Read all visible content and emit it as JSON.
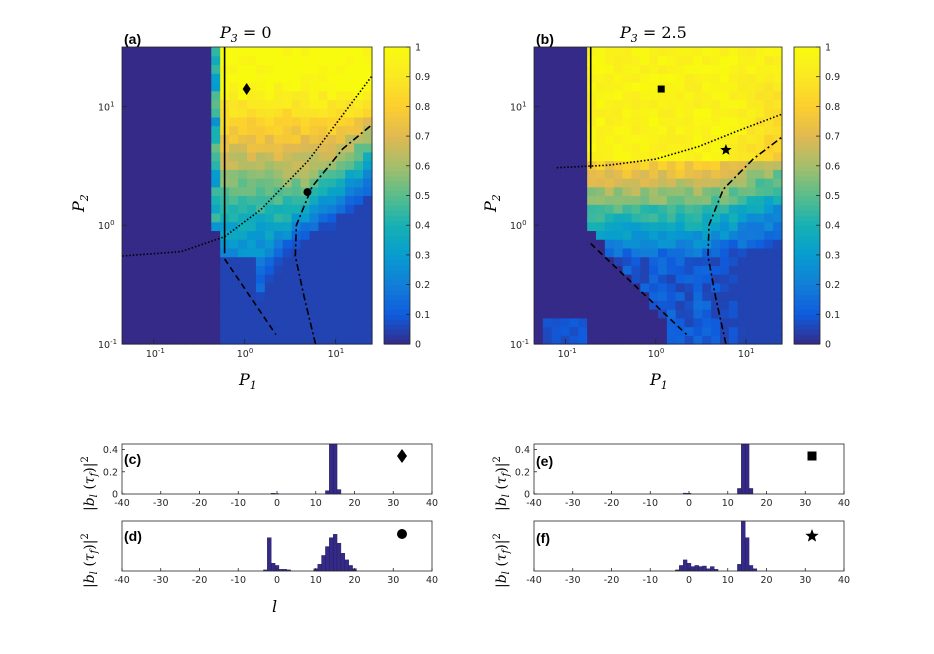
{
  "chart_data": [
    {
      "panel": "(a)",
      "type": "heatmap",
      "title_var": "P",
      "title_sub": "3",
      "title_rest": " = 0",
      "xlabel_var": "P",
      "xlabel_sub": "1",
      "ylabel_var": "P",
      "ylabel_sub": "2",
      "xlog": [
        -1.35,
        1.4
      ],
      "ylog": [
        -1.0,
        1.5
      ],
      "x_ticks": [
        {
          "base": "10",
          "exp": "-1",
          "v": 0.1
        },
        {
          "base": "10",
          "exp": "0",
          "v": 1
        },
        {
          "base": "10",
          "exp": "1",
          "v": 10
        }
      ],
      "y_ticks": [
        {
          "base": "10",
          "exp": "-1",
          "v": 0.1
        },
        {
          "base": "10",
          "exp": "0",
          "v": 1
        },
        {
          "base": "10",
          "exp": "1",
          "v": 10
        }
      ],
      "colorbar": {
        "min": 0,
        "max": 1,
        "ticks": [
          "0",
          "0.1",
          "0.2",
          "0.3",
          "0.4",
          "0.5",
          "0.6",
          "0.7",
          "0.8",
          "0.9",
          "1"
        ]
      },
      "threshold_P1": 0.6,
      "solid_line": {
        "P1": 0.6,
        "P2_range": [
          0.58,
          31.6
        ]
      },
      "dotted_curve": [
        [
          0.045,
          0.55
        ],
        [
          0.2,
          0.6
        ],
        [
          0.6,
          0.8
        ],
        [
          1.5,
          1.35
        ],
        [
          5,
          3.5
        ],
        [
          12,
          8.5
        ],
        [
          25,
          18
        ]
      ],
      "dashdot_curve": [
        [
          6,
          0.1
        ],
        [
          4.5,
          0.25
        ],
        [
          3.6,
          0.55
        ],
        [
          3.7,
          1.0
        ],
        [
          5.5,
          2.1
        ],
        [
          12,
          4.4
        ],
        [
          25,
          7
        ]
      ],
      "dashed_line": [
        [
          0.6,
          0.52
        ],
        [
          2.2,
          0.12
        ]
      ],
      "markers": [
        {
          "symbol": "diamond",
          "P1": 1.05,
          "P2": 14
        },
        {
          "symbol": "circle",
          "P1": 4.9,
          "P2": 1.9
        }
      ]
    },
    {
      "panel": "(b)",
      "type": "heatmap",
      "title_var": "P",
      "title_sub": "3",
      "title_rest": " = 2.5",
      "xlabel_var": "P",
      "xlabel_sub": "1",
      "ylabel_var": "P",
      "ylabel_sub": "2",
      "xlog": [
        -1.35,
        1.4
      ],
      "ylog": [
        -1.0,
        1.5
      ],
      "x_ticks": [
        {
          "base": "10",
          "exp": "-1",
          "v": 0.1
        },
        {
          "base": "10",
          "exp": "0",
          "v": 1
        },
        {
          "base": "10",
          "exp": "1",
          "v": 10
        }
      ],
      "y_ticks": [
        {
          "base": "10",
          "exp": "-1",
          "v": 0.1
        },
        {
          "base": "10",
          "exp": "0",
          "v": 1
        },
        {
          "base": "10",
          "exp": "1",
          "v": 10
        }
      ],
      "colorbar": {
        "min": 0,
        "max": 1,
        "ticks": [
          "0",
          "0.1",
          "0.2",
          "0.3",
          "0.4",
          "0.5",
          "0.6",
          "0.7",
          "0.8",
          "0.9",
          "1"
        ]
      },
      "threshold_P1": 0.19,
      "solid_line": {
        "P1": 0.19,
        "P2_range": [
          3.0,
          31.6
        ]
      },
      "dotted_curve": [
        [
          0.08,
          3.05
        ],
        [
          0.3,
          3.2
        ],
        [
          1,
          3.6
        ],
        [
          3,
          4.6
        ],
        [
          8,
          6.2
        ],
        [
          25,
          8.6
        ]
      ],
      "dashdot_curve": [
        [
          6,
          0.1
        ],
        [
          4.6,
          0.25
        ],
        [
          3.8,
          0.55
        ],
        [
          3.9,
          1.0
        ],
        [
          5.6,
          2.0
        ],
        [
          12,
          3.6
        ],
        [
          25,
          5.5
        ]
      ],
      "dashed_line": [
        [
          0.19,
          0.7
        ],
        [
          2.2,
          0.12
        ]
      ],
      "markers": [
        {
          "symbol": "square",
          "P1": 1.15,
          "P2": 14
        },
        {
          "symbol": "star",
          "P1": 6.0,
          "P2": 4.3
        }
      ]
    },
    {
      "panel": "(c)",
      "type": "bar",
      "ylabel": "|b_l(τ_f)|^2",
      "xlabel": "",
      "xlim": [
        -40,
        40
      ],
      "ylim": [
        0,
        0.45
      ],
      "x_ticks": [
        "-40",
        "-30",
        "-20",
        "-10",
        "0",
        "10",
        "20",
        "30",
        "40"
      ],
      "y_ticks": [
        "0",
        "0.2",
        "0.4"
      ],
      "bars": {
        "x": [
          -1,
          0,
          13,
          14,
          15,
          16
        ],
        "y": [
          0.006,
          0.004,
          0.03,
          0.45,
          0.45,
          0.04
        ]
      },
      "marker": "diamond"
    },
    {
      "panel": "(d)",
      "type": "bar",
      "ylabel": "|b_l(τ_f)|^2",
      "xlabel": "l",
      "xlim": [
        -40,
        40
      ],
      "ylim": [
        0,
        0.45
      ],
      "x_ticks": [
        "-40",
        "-30",
        "-20",
        "-10",
        "0",
        "10",
        "20",
        "30",
        "40"
      ],
      "y_ticks": [],
      "bars": {
        "x": [
          -3,
          -2,
          -1,
          0,
          1,
          2,
          3,
          10,
          11,
          12,
          13,
          14,
          15,
          16,
          17,
          18,
          19,
          20
        ],
        "y": [
          0.01,
          0.3,
          0.07,
          0.05,
          0.015,
          0.015,
          0.01,
          0.02,
          0.06,
          0.14,
          0.22,
          0.3,
          0.33,
          0.25,
          0.16,
          0.1,
          0.05,
          0.02
        ]
      },
      "marker": "circle"
    },
    {
      "panel": "(e)",
      "type": "bar",
      "ylabel": "|b_l(τ_f)|^2",
      "xlabel": "",
      "xlim": [
        -40,
        40
      ],
      "ylim": [
        0,
        0.45
      ],
      "x_ticks": [
        "-40",
        "-30",
        "-20",
        "-10",
        "0",
        "10",
        "20",
        "30",
        "40"
      ],
      "y_ticks": [
        "0",
        "0.2",
        "0.4"
      ],
      "bars": {
        "x": [
          -1,
          0,
          13,
          14,
          15,
          16
        ],
        "y": [
          0.008,
          0.006,
          0.05,
          0.45,
          0.45,
          0.05
        ]
      },
      "marker": "square"
    },
    {
      "panel": "(f)",
      "type": "bar",
      "ylabel": "|b_l(τ_f)|^2",
      "xlabel": "",
      "xlim": [
        -40,
        40
      ],
      "ylim": [
        0,
        0.45
      ],
      "x_ticks": [
        "-40",
        "-30",
        "-20",
        "-10",
        "0",
        "10",
        "20",
        "30",
        "40"
      ],
      "y_ticks": [],
      "bars": {
        "x": [
          -3,
          -2,
          -1,
          0,
          1,
          2,
          3,
          4,
          5,
          6,
          7,
          13,
          14,
          15,
          16,
          17
        ],
        "y": [
          0.01,
          0.05,
          0.1,
          0.07,
          0.04,
          0.05,
          0.04,
          0.045,
          0.02,
          0.04,
          0.015,
          0.06,
          0.45,
          0.3,
          0.05,
          0.02
        ]
      },
      "marker": "star"
    }
  ]
}
